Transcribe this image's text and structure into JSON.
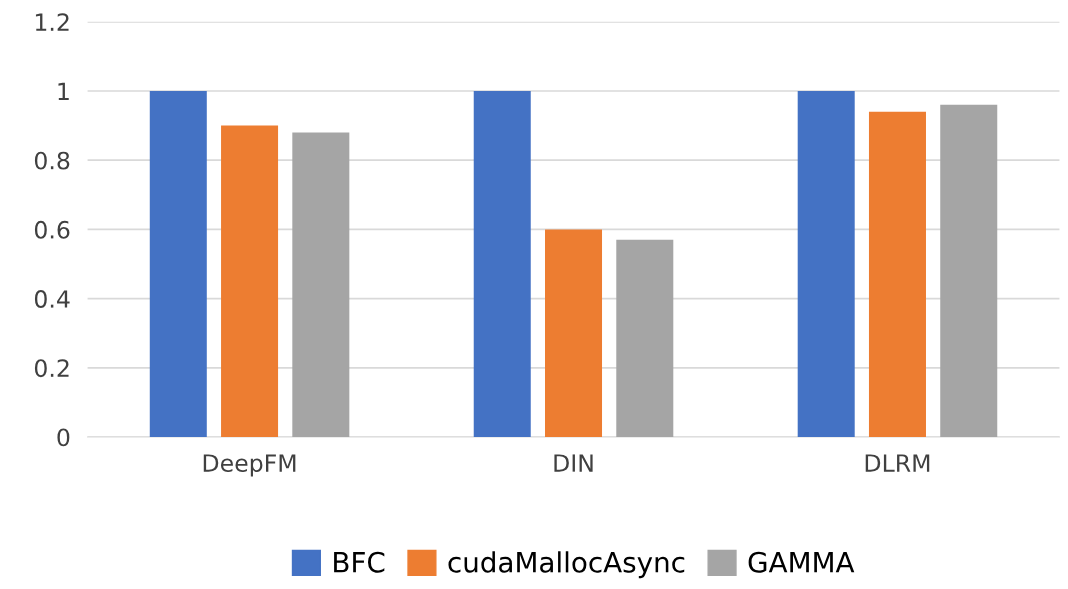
{
  "chart_data": {
    "type": "bar",
    "categories": [
      "DeepFM",
      "DIN",
      "DLRM"
    ],
    "series": [
      {
        "name": "BFC",
        "color": "#4472c4",
        "values": [
          1,
          1,
          1
        ]
      },
      {
        "name": "cudaMallocAsync",
        "color": "#ed7d31",
        "values": [
          0.9,
          0.6,
          0.94
        ]
      },
      {
        "name": "GAMMA",
        "color": "#a5a5a5",
        "values": [
          0.88,
          0.57,
          0.96
        ]
      }
    ],
    "ylim": [
      0,
      1.2
    ],
    "yticks": [
      0,
      {
        "value": 0.2,
        "label": "0.2"
      },
      {
        "value": 0.4,
        "label": "0.4"
      },
      {
        "value": 0.6,
        "label": "0.6"
      },
      {
        "value": 0.8,
        "label": "0.8"
      },
      1,
      {
        "value": 1.2,
        "label": "1.2"
      }
    ],
    "grid": "y",
    "legend": "bottom"
  }
}
